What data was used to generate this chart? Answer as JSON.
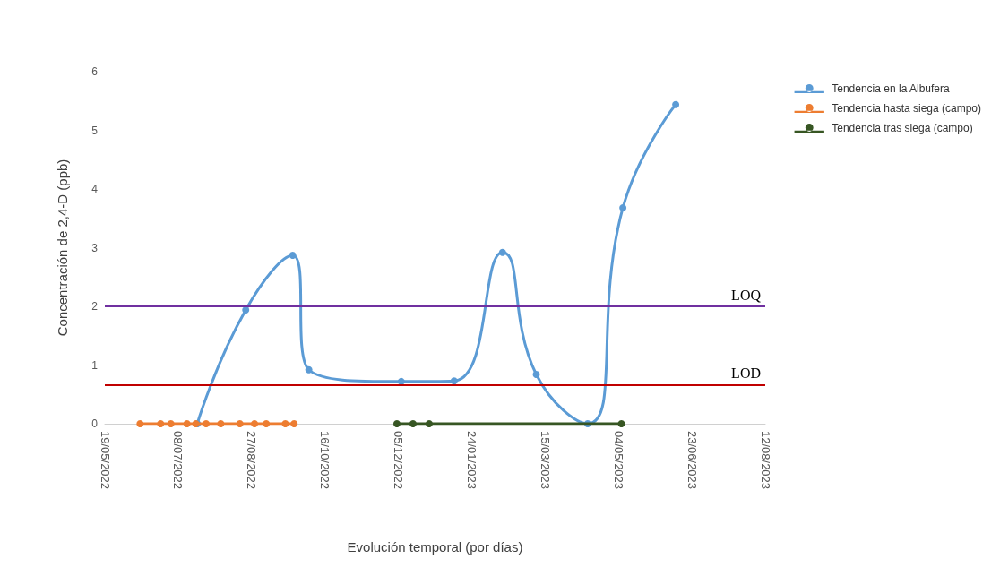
{
  "chart_data": {
    "type": "line",
    "xlabel": "Evolución temporal (por días)",
    "ylabel": "Concentración de 2,4-D (ppb)",
    "xlim": [
      "2022-05-19",
      "2023-08-12"
    ],
    "xticks": [
      {
        "value": "2022-05-19",
        "label": "19/05/2022"
      },
      {
        "value": "2022-07-08",
        "label": "08/07/2022"
      },
      {
        "value": "2022-08-27",
        "label": "27/08/2022"
      },
      {
        "value": "2022-10-16",
        "label": "16/10/2022"
      },
      {
        "value": "2022-12-05",
        "label": "05/12/2022"
      },
      {
        "value": "2023-01-24",
        "label": "24/01/2023"
      },
      {
        "value": "2023-03-15",
        "label": "15/03/2023"
      },
      {
        "value": "2023-05-04",
        "label": "04/05/2023"
      },
      {
        "value": "2023-06-23",
        "label": "23/06/2023"
      },
      {
        "value": "2023-08-12",
        "label": "12/08/2023"
      }
    ],
    "ylim": [
      0,
      6
    ],
    "yticks": [
      0,
      1,
      2,
      3,
      4,
      5,
      6
    ],
    "grid": false,
    "legend": "top right",
    "marker": "circle",
    "line_style": "solid",
    "series": [
      {
        "name": "Tendencia en la Albufera",
        "color": "#5b9bd5",
        "x": [
          "2022-07-21",
          "2022-08-23",
          "2022-09-24",
          "2022-10-05",
          "2022-12-07",
          "2023-01-12",
          "2023-02-14",
          "2023-03-09",
          "2023-04-13",
          "2023-05-07",
          "2023-06-12"
        ],
        "values": [
          0,
          1.94,
          2.87,
          0.92,
          0.72,
          0.73,
          2.92,
          0.84,
          0,
          3.68,
          5.44
        ]
      },
      {
        "name": "Tendencia hasta siega (campo)",
        "color": "#ed7d31",
        "x": [
          "2022-06-12",
          "2022-06-26",
          "2022-07-03",
          "2022-07-14",
          "2022-07-20",
          "2022-07-27",
          "2022-08-06",
          "2022-08-19",
          "2022-08-29",
          "2022-09-06",
          "2022-09-19",
          "2022-09-25"
        ],
        "values": [
          0,
          0,
          0,
          0,
          0,
          0,
          0,
          0,
          0,
          0,
          0,
          0
        ]
      },
      {
        "name": "Tendencia tras siega (campo)",
        "color": "#375623",
        "x": [
          "2022-12-04",
          "2022-12-15",
          "2022-12-26",
          "2023-05-06"
        ],
        "values": [
          0,
          0,
          0,
          0
        ]
      }
    ],
    "ref_lines": [
      {
        "axis": "y",
        "value": 2,
        "label": "LOQ",
        "color": "#7030a0"
      },
      {
        "axis": "y",
        "value": 0.66,
        "label": "LOD",
        "color": "#c00000"
      }
    ]
  }
}
